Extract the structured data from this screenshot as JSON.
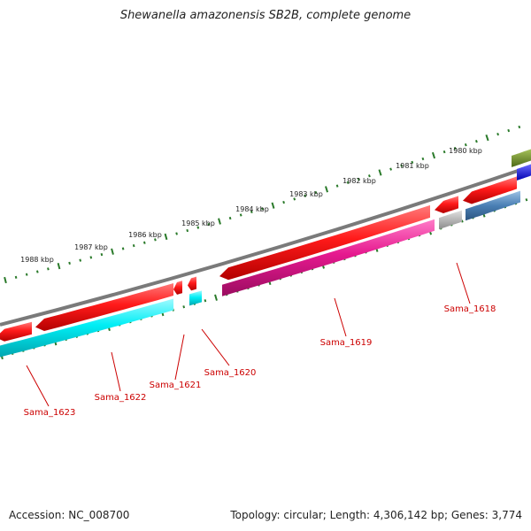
{
  "title": "Shewanella amazonensis SB2B, complete genome",
  "footer": {
    "accession": "Accession: NC_008700",
    "topology": "Topology: circular; Length: 4,306,142 bp; Genes: 3,774"
  },
  "colors": {
    "backbone": "#7a7a7a",
    "forward_gene": "#ff0000",
    "reverse_gene_cyan": "#00e5ee",
    "reverse_gene_magenta": "#e6198f",
    "pseudo_gene": "#b0b0b0",
    "steelblue_gene": "#4a7fb4",
    "olive_gene": "#6e8a2a",
    "blue_gene": "#0000ff",
    "ticks": "#2a7a2a",
    "label": "#cc0000"
  },
  "scale_labels": [
    "1980 kbp",
    "1981 kbp",
    "1982 kbp",
    "1983 kbp",
    "1984 kbp",
    "1985 kbp",
    "1986 kbp",
    "1987 kbp",
    "1988 kbp"
  ],
  "gene_labels": [
    "Sama_1618",
    "Sama_1619",
    "Sama_1620",
    "Sama_1621",
    "Sama_1622",
    "Sama_1623"
  ]
}
